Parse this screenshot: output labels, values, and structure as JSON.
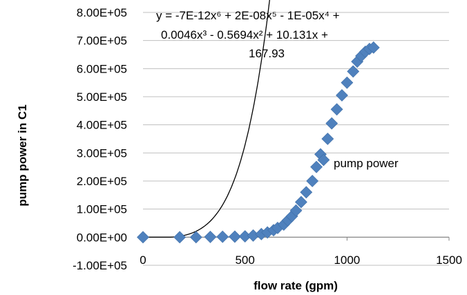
{
  "chart_data": {
    "type": "scatter",
    "title": "",
    "xlabel": "flow rate (gpm)",
    "ylabel": "pump power in C1",
    "xlim": [
      0,
      1500
    ],
    "ylim": [
      -100000,
      800000
    ],
    "x_ticks": [
      0,
      500,
      1000,
      1500
    ],
    "x_tick_labels": [
      "0",
      "500",
      "1000",
      "1500"
    ],
    "y_ticks": [
      -100000,
      0,
      100000,
      200000,
      300000,
      400000,
      500000,
      600000,
      700000,
      800000
    ],
    "y_tick_labels": [
      "-1.00E+05",
      "0.00E+00",
      "1.00E+05",
      "2.00E+05",
      "3.00E+05",
      "4.00E+05",
      "5.00E+05",
      "6.00E+05",
      "7.00E+05",
      "8.00E+05"
    ],
    "grid": {
      "horizontal": true,
      "vertical": false
    },
    "marker": "diamond",
    "marker_color": "#4F81BD",
    "trendline_color": "#000000",
    "series": [
      {
        "name": "pump power",
        "points": [
          [
            0,
            0
          ],
          [
            180,
            0
          ],
          [
            260,
            0
          ],
          [
            330,
            1000
          ],
          [
            390,
            1500
          ],
          [
            450,
            2000
          ],
          [
            500,
            3000
          ],
          [
            540,
            6000
          ],
          [
            580,
            11000
          ],
          [
            610,
            17000
          ],
          [
            640,
            25000
          ],
          [
            660,
            33000
          ],
          [
            690,
            45000
          ],
          [
            710,
            60000
          ],
          [
            730,
            75000
          ],
          [
            750,
            95000
          ],
          [
            775,
            125000
          ],
          [
            800,
            160000
          ],
          [
            830,
            200000
          ],
          [
            850,
            250000
          ],
          [
            870,
            295000
          ],
          [
            885,
            275000
          ],
          [
            905,
            350000
          ],
          [
            925,
            405000
          ],
          [
            950,
            455000
          ],
          [
            975,
            505000
          ],
          [
            1000,
            550000
          ],
          [
            1030,
            590000
          ],
          [
            1050,
            625000
          ],
          [
            1070,
            645000
          ],
          [
            1090,
            660000
          ],
          [
            1110,
            670000
          ],
          [
            1130,
            675000
          ]
        ]
      }
    ],
    "trendline_equation": [
      "y = -7E-12x⁶ + 2E-08x⁵ - 1E-05x⁴ +",
      "0.0046x³ - 0.5694x² + 10.131x +",
      "167.93"
    ],
    "series_label": "pump power"
  }
}
